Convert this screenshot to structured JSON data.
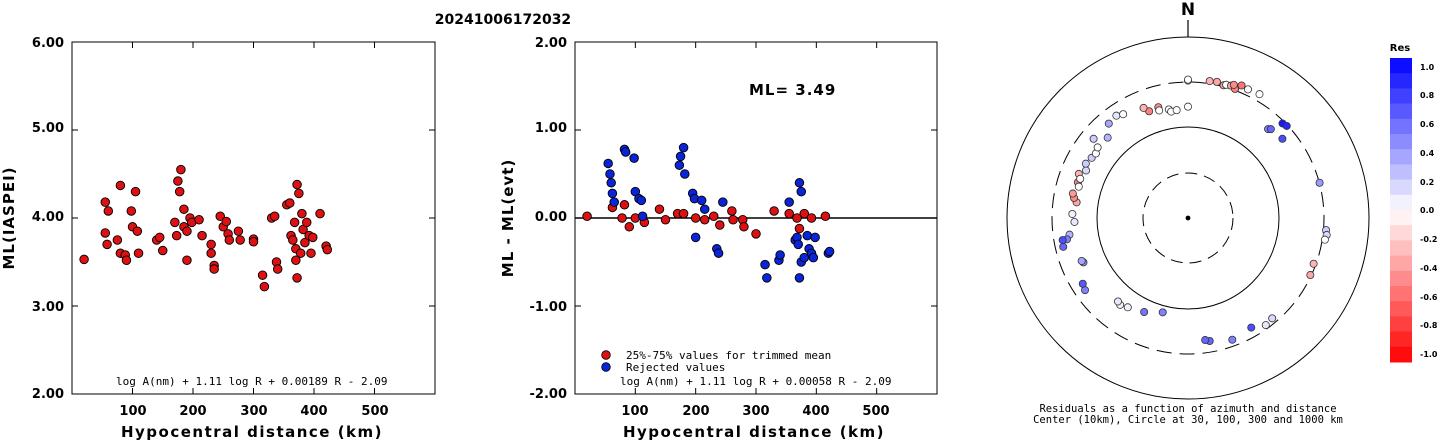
{
  "title": "20241006172032",
  "colors": {
    "trimmed": "#dd1111",
    "rejected": "#0a24d8"
  },
  "left_plot": {
    "ylabel": "ML(IASPEI)",
    "xlabel": "Hypocentral distance (km)",
    "formula": "log A(nm) + 1.11 log R + 0.00189 R - 2.09",
    "ytick_labels": [
      "6.00",
      "5.00",
      "4.00",
      "3.00",
      "2.00"
    ],
    "xtick_labels": [
      "100",
      "200",
      "300",
      "400",
      "500"
    ]
  },
  "middle_plot": {
    "ylabel": "ML - ML(evt)",
    "xlabel": "Hypocentral distance (km)",
    "ml_label": "ML= 3.49",
    "legend_trimmed": "25%-75% values for trimmed mean",
    "legend_rejected": "Rejected values",
    "formula": "log A(nm) + 1.11 log R + 0.00058 R - 2.09",
    "ytick_labels": [
      "2.00",
      "1.00",
      "0.00",
      "-1.00",
      "-2.00"
    ],
    "xtick_labels": [
      "100",
      "200",
      "300",
      "400",
      "500"
    ]
  },
  "polar_plot": {
    "north_label": "N",
    "caption_line1": "Residuals as a function of azimuth and distance",
    "caption_line2": "Center (10km), Circle at 30, 100, 300 and 1000 km",
    "colorbar_title": "Res",
    "colorbar_ticks": [
      "1.0",
      "0.8",
      "0.6",
      "0.4",
      "0.2",
      "0.0",
      "-0.2",
      "-0.4",
      "-0.6",
      "-0.8",
      "-1.0"
    ]
  },
  "chart_data": [
    {
      "type": "scatter",
      "ylabel": "ML(IASPEI)",
      "xlabel": "Hypocentral distance (km)",
      "xlim": [
        0,
        600
      ],
      "ylim": [
        2.0,
        6.0
      ],
      "points": [
        [
          20,
          3.53
        ],
        [
          55,
          4.18
        ],
        [
          55,
          3.83
        ],
        [
          58,
          3.7
        ],
        [
          60,
          4.08
        ],
        [
          75,
          3.75
        ],
        [
          80,
          4.37
        ],
        [
          80,
          3.6
        ],
        [
          88,
          3.58
        ],
        [
          90,
          3.52
        ],
        [
          98,
          4.08
        ],
        [
          100,
          3.9
        ],
        [
          105,
          4.3
        ],
        [
          108,
          3.85
        ],
        [
          110,
          3.6
        ],
        [
          140,
          3.75
        ],
        [
          145,
          3.78
        ],
        [
          150,
          3.63
        ],
        [
          170,
          3.95
        ],
        [
          173,
          3.8
        ],
        [
          175,
          4.42
        ],
        [
          178,
          4.3
        ],
        [
          180,
          4.55
        ],
        [
          185,
          4.1
        ],
        [
          185,
          3.9
        ],
        [
          190,
          3.85
        ],
        [
          190,
          3.52
        ],
        [
          195,
          4.0
        ],
        [
          198,
          3.95
        ],
        [
          210,
          3.98
        ],
        [
          215,
          3.8
        ],
        [
          230,
          3.7
        ],
        [
          230,
          3.6
        ],
        [
          235,
          3.46
        ],
        [
          235,
          3.42
        ],
        [
          245,
          4.02
        ],
        [
          250,
          3.9
        ],
        [
          255,
          3.96
        ],
        [
          258,
          3.82
        ],
        [
          260,
          3.75
        ],
        [
          275,
          3.85
        ],
        [
          278,
          3.75
        ],
        [
          300,
          3.76
        ],
        [
          300,
          3.73
        ],
        [
          315,
          3.35
        ],
        [
          318,
          3.22
        ],
        [
          330,
          4.0
        ],
        [
          335,
          4.02
        ],
        [
          338,
          3.5
        ],
        [
          340,
          3.42
        ],
        [
          355,
          4.15
        ],
        [
          360,
          4.17
        ],
        [
          362,
          3.8
        ],
        [
          365,
          3.75
        ],
        [
          368,
          3.95
        ],
        [
          370,
          3.65
        ],
        [
          370,
          3.52
        ],
        [
          372,
          3.32
        ],
        [
          372,
          4.38
        ],
        [
          375,
          4.28
        ],
        [
          378,
          3.6
        ],
        [
          380,
          4.05
        ],
        [
          382,
          3.87
        ],
        [
          385,
          3.72
        ],
        [
          388,
          3.95
        ],
        [
          392,
          3.8
        ],
        [
          395,
          3.6
        ],
        [
          398,
          3.78
        ],
        [
          410,
          4.05
        ],
        [
          420,
          3.68
        ],
        [
          422,
          3.64
        ]
      ]
    },
    {
      "type": "scatter",
      "ylabel": "ML - ML(evt)",
      "xlabel": "Hypocentral distance (km)",
      "xlim": [
        0,
        600
      ],
      "ylim": [
        -2.0,
        2.0
      ],
      "hline": 0.0,
      "series": [
        {
          "name": "25%-75% values for trimmed mean",
          "color": "#dd1111",
          "points": [
            [
              20,
              0.02
            ],
            [
              62,
              0.12
            ],
            [
              78,
              0.0
            ],
            [
              82,
              0.15
            ],
            [
              90,
              -0.1
            ],
            [
              100,
              0.0
            ],
            [
              115,
              -0.05
            ],
            [
              140,
              0.1
            ],
            [
              150,
              -0.02
            ],
            [
              170,
              0.05
            ],
            [
              180,
              0.05
            ],
            [
              200,
              0.0
            ],
            [
              215,
              -0.02
            ],
            [
              230,
              0.02
            ],
            [
              240,
              -0.08
            ],
            [
              260,
              0.08
            ],
            [
              262,
              -0.02
            ],
            [
              278,
              -0.02
            ],
            [
              280,
              -0.1
            ],
            [
              300,
              -0.18
            ],
            [
              330,
              0.08
            ],
            [
              355,
              0.05
            ],
            [
              368,
              0.0
            ],
            [
              372,
              -0.12
            ],
            [
              380,
              0.05
            ],
            [
              392,
              0.0
            ],
            [
              415,
              0.02
            ]
          ]
        },
        {
          "name": "Rejected values",
          "color": "#0a24d8",
          "points": [
            [
              55,
              0.62
            ],
            [
              58,
              0.5
            ],
            [
              60,
              0.4
            ],
            [
              62,
              0.28
            ],
            [
              65,
              0.18
            ],
            [
              82,
              0.78
            ],
            [
              84,
              0.75
            ],
            [
              98,
              0.68
            ],
            [
              100,
              0.3
            ],
            [
              106,
              0.22
            ],
            [
              110,
              0.2
            ],
            [
              112,
              0.02
            ],
            [
              173,
              0.6
            ],
            [
              175,
              0.7
            ],
            [
              180,
              0.8
            ],
            [
              182,
              0.5
            ],
            [
              195,
              0.28
            ],
            [
              198,
              0.22
            ],
            [
              210,
              0.2
            ],
            [
              215,
              0.1
            ],
            [
              200,
              -0.22
            ],
            [
              235,
              -0.35
            ],
            [
              238,
              -0.4
            ],
            [
              245,
              0.18
            ],
            [
              315,
              -0.53
            ],
            [
              318,
              -0.68
            ],
            [
              338,
              -0.48
            ],
            [
              340,
              -0.42
            ],
            [
              355,
              0.18
            ],
            [
              365,
              -0.25
            ],
            [
              368,
              -0.22
            ],
            [
              370,
              -0.3
            ],
            [
              372,
              0.4
            ],
            [
              375,
              0.3
            ],
            [
              372,
              -0.68
            ],
            [
              375,
              -0.5
            ],
            [
              380,
              -0.45
            ],
            [
              385,
              -0.2
            ],
            [
              388,
              -0.35
            ],
            [
              392,
              -0.4
            ],
            [
              395,
              -0.45
            ],
            [
              398,
              -0.22
            ],
            [
              420,
              -0.4
            ],
            [
              422,
              -0.38
            ]
          ]
        }
      ]
    },
    {
      "type": "scatter",
      "subtype": "polar-residuals",
      "rings_km": [
        30,
        100,
        300,
        1000
      ],
      "center_km": 10,
      "color_range": [
        -1.0,
        1.0
      ],
      "points": [
        [
          0,
          330,
          0.0
        ],
        [
          0,
          338,
          0.0
        ],
        [
          9,
          340,
          -0.3
        ],
        [
          12,
          345,
          -0.35
        ],
        [
          15,
          330,
          -0.4
        ],
        [
          16,
          340,
          0.0
        ],
        [
          18,
          345,
          -0.35
        ],
        [
          20,
          340,
          -0.45
        ],
        [
          20,
          330,
          -0.5
        ],
        [
          19,
          360,
          -0.45
        ],
        [
          22,
          380,
          -0.55
        ],
        [
          25,
          370,
          0.0
        ],
        [
          30,
          380,
          0.0
        ],
        [
          45,
          300,
          0.9
        ],
        [
          47,
          310,
          0.85
        ],
        [
          50,
          230,
          0.7
        ],
        [
          42,
          210,
          0.5
        ],
        [
          43,
          220,
          0.6
        ],
        [
          75,
          320,
          0.4
        ],
        [
          95,
          340,
          0.2
        ],
        [
          97,
          350,
          0.15
        ],
        [
          99,
          340,
          0.0
        ],
        [
          110,
          300,
          -0.3
        ],
        [
          115,
          310,
          -0.35
        ],
        [
          140,
          280,
          0.15
        ],
        [
          144,
          290,
          0.1
        ],
        [
          150,
          250,
          0.7
        ],
        [
          160,
          270,
          0.5
        ],
        [
          170,
          240,
          0.6
        ],
        [
          172,
          230,
          0.6
        ],
        [
          195,
          120,
          0.5
        ],
        [
          205,
          140,
          0.55
        ],
        [
          214,
          155,
          0.05
        ],
        [
          218,
          165,
          0.05
        ],
        [
          220,
          160,
          0.1
        ],
        [
          235,
          245,
          0.5
        ],
        [
          238,
          235,
          0.65
        ],
        [
          247,
          180,
          0.45
        ],
        [
          248,
          185,
          0.35
        ],
        [
          262,
          210,
          0.3
        ],
        [
          260,
          228,
          0.5
        ],
        [
          257,
          260,
          0.6
        ],
        [
          260,
          255,
          0.7
        ],
        [
          268,
          180,
          0.1
        ],
        [
          272,
          190,
          0.05
        ],
        [
          278,
          175,
          -0.35
        ],
        [
          280,
          190,
          -0.45
        ],
        [
          282,
          200,
          -0.4
        ],
        [
          288,
          190,
          -0.5
        ],
        [
          292,
          200,
          -0.3
        ],
        [
          286,
          180,
          0.0
        ],
        [
          290,
          185,
          0.0
        ],
        [
          295,
          175,
          0.15
        ],
        [
          298,
          190,
          0.2
        ],
        [
          302,
          180,
          0.2
        ],
        [
          305,
          175,
          0.0
        ],
        [
          308,
          185,
          0.0
        ],
        [
          315,
          180,
          0.3
        ],
        [
          310,
          230,
          0.2
        ],
        [
          320,
          230,
          0.35
        ],
        [
          325,
          240,
          0.1
        ],
        [
          328,
          225,
          0.0
        ],
        [
          340,
          180,
          -0.5
        ],
        [
          345,
          185,
          -0.45
        ],
        [
          338,
          205,
          -0.3
        ],
        [
          345,
          170,
          0.0
        ],
        [
          350,
          165,
          0.0
        ],
        [
          351,
          155,
          0.0
        ],
        [
          354,
          158,
          0.0
        ],
        [
          0,
          170,
          0.0
        ]
      ]
    }
  ]
}
